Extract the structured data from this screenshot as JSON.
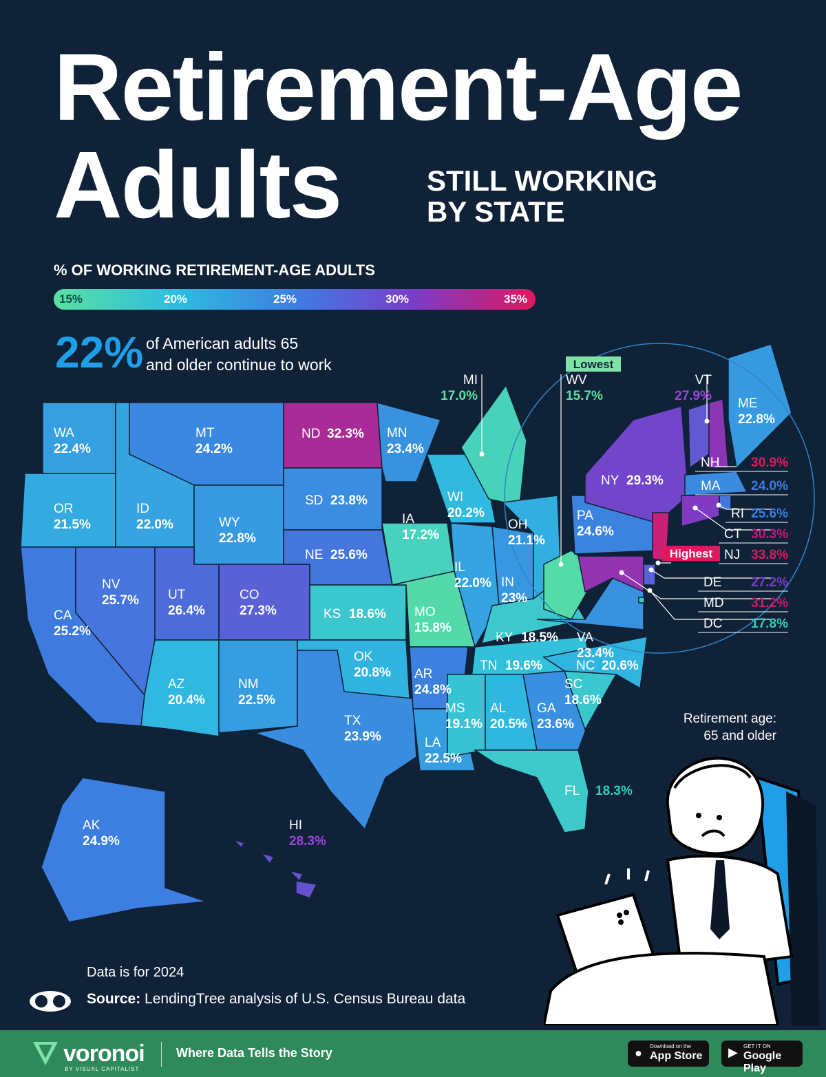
{
  "title": {
    "line1": "Retirement-Age",
    "line2": "Adults",
    "subtitle_line1": "STILL WORKING",
    "subtitle_line2": "BY STATE"
  },
  "legend": {
    "title": "% OF WORKING RETIREMENT-AGE ADULTS",
    "ticks": [
      "15%",
      "20%",
      "25%",
      "30%",
      "35%"
    ]
  },
  "headline": {
    "value": "22%",
    "text_line1": "of American adults 65",
    "text_line2": "and older continue to work"
  },
  "callouts": {
    "lowest": "Lowest",
    "highest": "Highest"
  },
  "states": [
    {
      "abbr": "WA",
      "value": "22.4%",
      "num": 22.4
    },
    {
      "abbr": "OR",
      "value": "21.5%",
      "num": 21.5
    },
    {
      "abbr": "CA",
      "value": "25.2%",
      "num": 25.2
    },
    {
      "abbr": "ID",
      "value": "22.0%",
      "num": 22.0
    },
    {
      "abbr": "NV",
      "value": "25.7%",
      "num": 25.7
    },
    {
      "abbr": "MT",
      "value": "24.2%",
      "num": 24.2
    },
    {
      "abbr": "WY",
      "value": "22.8%",
      "num": 22.8
    },
    {
      "abbr": "UT",
      "value": "26.4%",
      "num": 26.4
    },
    {
      "abbr": "AZ",
      "value": "20.4%",
      "num": 20.4
    },
    {
      "abbr": "CO",
      "value": "27.3%",
      "num": 27.3
    },
    {
      "abbr": "NM",
      "value": "22.5%",
      "num": 22.5
    },
    {
      "abbr": "ND",
      "value": "32.3%",
      "num": 32.3
    },
    {
      "abbr": "SD",
      "value": "23.8%",
      "num": 23.8
    },
    {
      "abbr": "NE",
      "value": "25.6%",
      "num": 25.6
    },
    {
      "abbr": "KS",
      "value": "18.6%",
      "num": 18.6
    },
    {
      "abbr": "OK",
      "value": "20.8%",
      "num": 20.8
    },
    {
      "abbr": "TX",
      "value": "23.9%",
      "num": 23.9
    },
    {
      "abbr": "MN",
      "value": "23.4%",
      "num": 23.4
    },
    {
      "abbr": "IA",
      "value": "17.2%",
      "num": 17.2
    },
    {
      "abbr": "MO",
      "value": "15.8%",
      "num": 15.8
    },
    {
      "abbr": "AR",
      "value": "24.8%",
      "num": 24.8
    },
    {
      "abbr": "LA",
      "value": "22.5%",
      "num": 22.5
    },
    {
      "abbr": "WI",
      "value": "20.2%",
      "num": 20.2
    },
    {
      "abbr": "IL",
      "value": "22.0%",
      "num": 22.0
    },
    {
      "abbr": "MI",
      "value": "17.0%",
      "num": 17.0
    },
    {
      "abbr": "IN",
      "value": "23%",
      "num": 23.0
    },
    {
      "abbr": "OH",
      "value": "21.1%",
      "num": 21.1
    },
    {
      "abbr": "KY",
      "value": "18.5%",
      "num": 18.5
    },
    {
      "abbr": "TN",
      "value": "19.6%",
      "num": 19.6
    },
    {
      "abbr": "MS",
      "value": "19.1%",
      "num": 19.1
    },
    {
      "abbr": "AL",
      "value": "20.5%",
      "num": 20.5
    },
    {
      "abbr": "GA",
      "value": "23.6%",
      "num": 23.6
    },
    {
      "abbr": "FL",
      "value": "18.3%",
      "num": 18.3
    },
    {
      "abbr": "SC",
      "value": "18.6%",
      "num": 18.6
    },
    {
      "abbr": "NC",
      "value": "20.6%",
      "num": 20.6
    },
    {
      "abbr": "VA",
      "value": "23.4%",
      "num": 23.4
    },
    {
      "abbr": "WV",
      "value": "15.7%",
      "num": 15.7
    },
    {
      "abbr": "PA",
      "value": "24.6%",
      "num": 24.6
    },
    {
      "abbr": "NY",
      "value": "29.3%",
      "num": 29.3
    },
    {
      "abbr": "VT",
      "value": "27.9%",
      "num": 27.9
    },
    {
      "abbr": "ME",
      "value": "22.8%",
      "num": 22.8
    },
    {
      "abbr": "NH",
      "value": "30.9%",
      "num": 30.9
    },
    {
      "abbr": "MA",
      "value": "24.0%",
      "num": 24.0
    },
    {
      "abbr": "RI",
      "value": "25.6%",
      "num": 25.6
    },
    {
      "abbr": "CT",
      "value": "30.3%",
      "num": 30.3
    },
    {
      "abbr": "NJ",
      "value": "33.8%",
      "num": 33.8
    },
    {
      "abbr": "DE",
      "value": "27.2%",
      "num": 27.2
    },
    {
      "abbr": "MD",
      "value": "31.2%",
      "num": 31.2
    },
    {
      "abbr": "DC",
      "value": "17.8%",
      "num": 17.8
    },
    {
      "abbr": "AK",
      "value": "24.9%",
      "num": 24.9
    },
    {
      "abbr": "HI",
      "value": "28.3%",
      "num": 28.3
    }
  ],
  "note": {
    "retirement_line1": "Retirement age:",
    "retirement_line2": "65 and older"
  },
  "footer": {
    "data_year": "Data is for 2024",
    "source_label": "Source:",
    "source_text": "LendingTree analysis of U.S. Census Bureau data",
    "brand": "voronoi",
    "brand_sub": "BY VISUAL CAPITALIST",
    "tagline": "Where Data Tells the Story",
    "app_store_small": "Download on the",
    "app_store": "App Store",
    "google_play_small": "GET IT ON",
    "google_play": "Google Play"
  }
}
